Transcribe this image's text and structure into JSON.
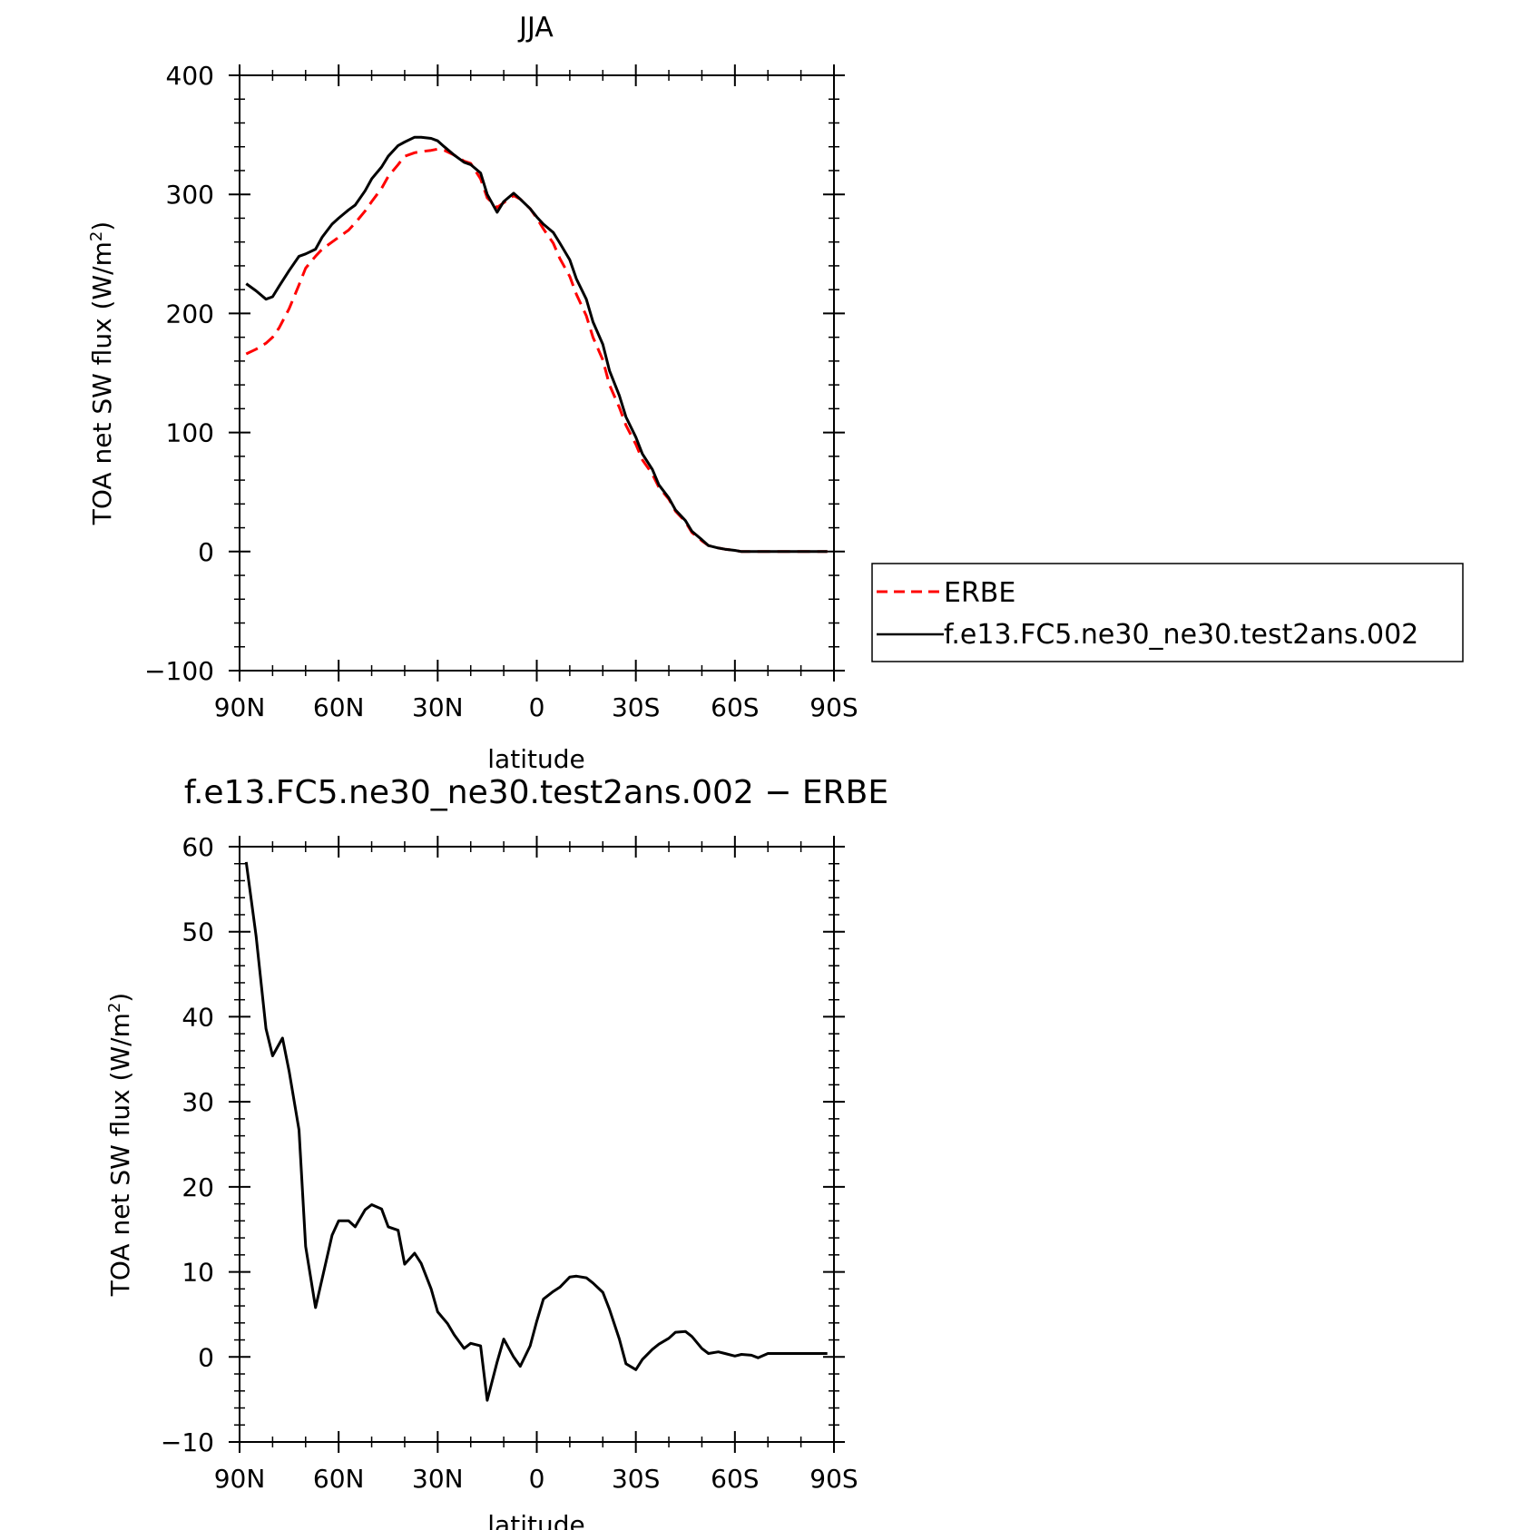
{
  "chart_data": [
    {
      "type": "line",
      "title": "JJA",
      "xlabel": "latitude",
      "ylabel": "TOA net SW flux (W/m²)",
      "ylabel_main": "TOA net SW flux (W/m",
      "ylabel_sup": "2",
      "ylabel_close": ")",
      "xlim": [
        90,
        -90
      ],
      "ylim": [
        -100,
        400
      ],
      "xticks": [
        90,
        60,
        30,
        0,
        -30,
        -60,
        -90
      ],
      "xticklabels": [
        "90N",
        "60N",
        "30N",
        "0",
        "30S",
        "60S",
        "90S"
      ],
      "yticks": [
        -100,
        0,
        100,
        200,
        300,
        400
      ],
      "yticklabels": [
        "−100",
        "0",
        "100",
        "200",
        "300",
        "400"
      ],
      "legend_position": "right",
      "series": [
        {
          "name": "ERBE",
          "color": "#ff0000",
          "style": "dashed",
          "x": [
            88,
            85,
            82,
            80,
            78,
            75,
            72,
            70,
            67,
            65,
            62,
            60,
            57,
            55,
            52,
            50,
            47,
            45,
            42,
            40,
            37,
            35,
            32,
            30,
            28,
            25,
            22,
            20,
            17,
            15,
            12,
            10,
            7,
            5,
            2,
            0,
            -2,
            -5,
            -7,
            -10,
            -12,
            -15,
            -17,
            -20,
            -22,
            -25,
            -27,
            -30,
            -32,
            -35,
            -37,
            -40,
            -42,
            -45,
            -47,
            -50,
            -52,
            -55,
            -57,
            -60,
            -62,
            -65,
            -67,
            -70,
            -72,
            -75,
            -77,
            -80,
            -82,
            -85,
            -88
          ],
          "y": [
            166,
            170,
            175,
            180,
            188,
            204,
            224,
            238,
            248,
            254,
            260,
            264,
            270,
            276,
            286,
            294,
            305,
            315,
            325,
            332,
            335,
            336,
            337,
            338,
            337,
            333,
            328,
            326,
            313,
            297,
            289,
            293,
            299,
            296,
            288,
            280,
            271,
            259,
            246,
            231,
            216,
            198,
            180,
            161,
            140,
            121,
            106,
            90,
            77,
            65,
            54,
            44,
            34,
            25,
            16,
            9,
            5,
            3,
            2,
            1,
            0,
            0,
            0,
            0,
            0,
            0,
            0,
            0,
            0,
            0,
            0
          ]
        },
        {
          "name": "f.e13.FC5.ne30_ne30.test2ans.002",
          "color": "#000000",
          "style": "solid",
          "x": [
            88,
            85,
            82,
            80,
            78,
            75,
            72,
            70,
            67,
            65,
            62,
            60,
            57,
            55,
            52,
            50,
            47,
            45,
            42,
            40,
            37,
            35,
            32,
            30,
            28,
            25,
            22,
            20,
            17,
            15,
            12,
            10,
            7,
            5,
            2,
            0,
            -2,
            -5,
            -7,
            -10,
            -12,
            -15,
            -17,
            -20,
            -22,
            -25,
            -27,
            -30,
            -32,
            -35,
            -37,
            -40,
            -42,
            -45,
            -47,
            -50,
            -52,
            -55,
            -57,
            -60,
            -62,
            -65,
            -67,
            -70,
            -72,
            -75,
            -77,
            -80,
            -82,
            -85,
            -88
          ],
          "y": [
            225,
            219,
            212,
            214,
            223,
            236,
            248,
            250,
            254,
            264,
            275,
            280,
            287,
            291,
            303,
            313,
            323,
            332,
            341,
            344,
            348,
            348,
            347,
            345,
            340,
            333,
            327,
            325,
            318,
            300,
            285,
            294,
            301,
            296,
            288,
            281,
            275,
            268,
            259,
            245,
            229,
            212,
            193,
            174,
            152,
            131,
            113,
            96,
            82,
            69,
            56,
            45,
            35,
            26,
            17,
            10,
            5,
            3,
            2,
            1,
            0,
            0,
            0,
            0,
            0,
            0,
            0,
            0,
            0,
            0,
            0
          ]
        }
      ]
    },
    {
      "type": "line",
      "title": "f.e13.FC5.ne30_ne30.test2ans.002 − ERBE",
      "xlabel": "latitude",
      "ylabel": "TOA net SW flux (W/m²)",
      "ylabel_main": "TOA net SW flux (W/m",
      "ylabel_sup": "2",
      "ylabel_close": ")",
      "xlim": [
        90,
        -90
      ],
      "ylim": [
        -10,
        60
      ],
      "xticks": [
        90,
        60,
        30,
        0,
        -30,
        -60,
        -90
      ],
      "xticklabels": [
        "90N",
        "60N",
        "30N",
        "0",
        "30S",
        "60S",
        "90S"
      ],
      "yticks": [
        -10,
        0,
        10,
        20,
        30,
        40,
        50,
        60
      ],
      "yticklabels": [
        "−10",
        "0",
        "10",
        "20",
        "30",
        "40",
        "50",
        "60"
      ],
      "series": [
        {
          "color": "#000000",
          "style": "solid",
          "x": [
            88,
            85,
            82,
            80,
            77,
            75,
            72,
            70,
            67,
            65,
            62,
            60,
            57,
            55,
            52,
            50,
            47,
            45,
            42,
            40,
            37,
            35,
            32,
            30,
            27,
            25,
            22,
            20,
            17,
            15,
            12,
            10,
            7,
            5,
            2,
            0,
            -2,
            -5,
            -7,
            -10,
            -12,
            -15,
            -17,
            -20,
            -22,
            -25,
            -27,
            -30,
            -32,
            -35,
            -37,
            -40,
            -42,
            -45,
            -47,
            -50,
            -52,
            -55,
            -57,
            -60,
            -62,
            -65,
            -67,
            -70,
            -72,
            -75,
            -77,
            -80,
            -82,
            -85,
            -87,
            -88
          ],
          "y": [
            58.2,
            49.5,
            38.6,
            35.4,
            37.5,
            33.6,
            26.7,
            13.0,
            5.8,
            9.2,
            14.3,
            16.0,
            16.0,
            15.3,
            17.3,
            17.9,
            17.4,
            15.3,
            14.9,
            10.9,
            12.2,
            11.0,
            8.0,
            5.3,
            3.9,
            2.6,
            1.0,
            1.6,
            1.3,
            -5.1,
            -0.6,
            2.1,
            0.0,
            -1.1,
            1.3,
            4.2,
            6.8,
            7.7,
            8.2,
            9.4,
            9.5,
            9.3,
            8.7,
            7.6,
            5.6,
            2.1,
            -0.8,
            -1.5,
            -0.3,
            0.9,
            1.5,
            2.2,
            2.9,
            3.0,
            2.4,
            1.0,
            0.4,
            0.6,
            0.4,
            0.1,
            0.3,
            0.2,
            -0.1,
            0.4,
            0.4,
            0.4,
            0.4,
            0.4,
            0.4,
            0.4,
            0.4,
            0.4
          ]
        }
      ]
    }
  ]
}
